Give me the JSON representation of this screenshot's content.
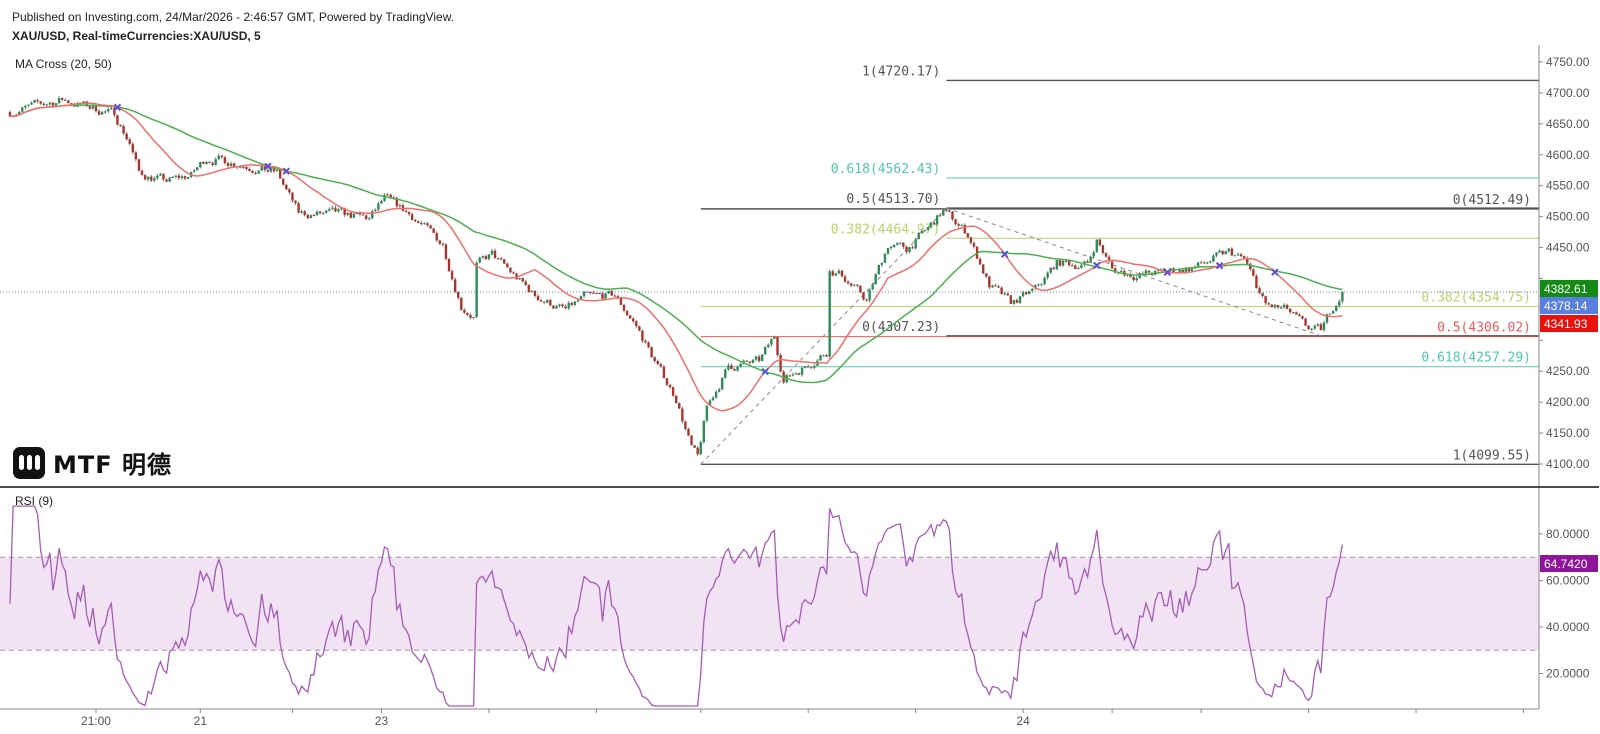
{
  "header": {
    "published": "Published on Investing.com, 24/Mar/2026 - 2:46:57 GMT, Powered by TradingView.",
    "symbol": "XAU/USD, Real-timeCurrencies:XAU/USD, 5",
    "ma_indicator": "MA Cross (20, 50)",
    "rsi_indicator": "RSI (9)"
  },
  "logo": {
    "text": "MTF 明德"
  },
  "colors": {
    "up": "#2e8b57",
    "down": "#a8362c",
    "ma20": "#ef6f6c",
    "ma50": "#4caf50",
    "rsi": "#a55cb5",
    "rsi_band": "#f1e3f3",
    "last": "#5b7fe0",
    "cross": "#5b4fd6",
    "fib_gray": "#555555",
    "fib_teal": "#4fc9b0",
    "fib_red": "#ef5a5a",
    "fib_yellow": "#b6d46a"
  },
  "chart_data": {
    "type": "candlestick",
    "title": "XAU/USD, 5",
    "x_domain_bars": [
      0,
      498
    ],
    "price_ylim": [
      4100,
      4750
    ],
    "price_ticks": [
      4100,
      4150,
      4200,
      4250,
      4300,
      4350,
      4400,
      4450,
      4500,
      4550,
      4600,
      4650,
      4700,
      4750
    ],
    "keypoints": [
      [
        0,
        4669
      ],
      [
        17,
        4689
      ],
      [
        34,
        4666
      ],
      [
        39,
        4620
      ],
      [
        42,
        4570
      ],
      [
        51,
        4557
      ],
      [
        59,
        4567
      ],
      [
        64,
        4595
      ],
      [
        74,
        4587
      ],
      [
        87,
        4570
      ],
      [
        94,
        4504
      ],
      [
        107,
        4504
      ],
      [
        117,
        4496
      ],
      [
        122,
        4529
      ],
      [
        131,
        4501
      ],
      [
        141,
        4455
      ],
      [
        147,
        4356
      ],
      [
        151,
        4339
      ],
      [
        152,
        4422
      ],
      [
        157,
        4438
      ],
      [
        164,
        4405
      ],
      [
        171,
        4372
      ],
      [
        181,
        4348
      ],
      [
        187,
        4369
      ],
      [
        197,
        4372
      ],
      [
        204,
        4323
      ],
      [
        211,
        4257
      ],
      [
        217,
        4207
      ],
      [
        222,
        4125
      ],
      [
        224,
        4108
      ],
      [
        227,
        4191
      ],
      [
        234,
        4257
      ],
      [
        244,
        4265
      ],
      [
        249,
        4306
      ],
      [
        252,
        4237
      ],
      [
        261,
        4265
      ],
      [
        266,
        4282
      ],
      [
        267,
        4414
      ],
      [
        271,
        4405
      ],
      [
        279,
        4364
      ],
      [
        286,
        4455
      ],
      [
        292,
        4447
      ],
      [
        299,
        4480
      ],
      [
        304,
        4509
      ],
      [
        312,
        4472
      ],
      [
        319,
        4389
      ],
      [
        326,
        4359
      ],
      [
        334,
        4381
      ],
      [
        341,
        4425
      ],
      [
        351,
        4422
      ],
      [
        354,
        4463
      ],
      [
        359,
        4414
      ],
      [
        367,
        4405
      ],
      [
        381,
        4414
      ],
      [
        386,
        4418
      ],
      [
        397,
        4442
      ],
      [
        402,
        4430
      ],
      [
        409,
        4356
      ],
      [
        416,
        4348
      ],
      [
        422,
        4320
      ],
      [
        427,
        4315
      ],
      [
        431,
        4356
      ],
      [
        434,
        4378
      ]
    ],
    "ma_periods": [
      20,
      50
    ],
    "last_labels": [
      {
        "name": "ma50",
        "value": "4382.61"
      },
      {
        "name": "last",
        "value": "4378.14"
      },
      {
        "name": "ma20",
        "value": "4341.93"
      }
    ],
    "last_price": 4378.14,
    "fib_retracements": [
      {
        "from_bar": 225,
        "label_side": "right",
        "levels": [
          {
            "ratio": "0",
            "price": 4512.49,
            "text": "0(4512.49)",
            "color": "fib_gray"
          },
          {
            "ratio": "0.382",
            "price": 4354.75,
            "text": "0.382(4354.75)",
            "color": "fib_yellow"
          },
          {
            "ratio": "0.5",
            "price": 4306.02,
            "text": "0.5(4306.02)",
            "color": "fib_red"
          },
          {
            "ratio": "0.618",
            "price": 4257.29,
            "text": "0.618(4257.29)",
            "color": "fib_teal"
          },
          {
            "ratio": "1",
            "price": 4099.55,
            "text": "1(4099.55)",
            "color": "fib_gray"
          }
        ],
        "trend": [
          [
            225,
            4099.55
          ],
          [
            305,
            4513.7
          ]
        ]
      },
      {
        "from_bar": 305,
        "label_side": "left",
        "levels": [
          {
            "ratio": "1",
            "price": 4720.17,
            "text": "1(4720.17)",
            "color": "fib_gray"
          },
          {
            "ratio": "0.618",
            "price": 4562.43,
            "text": "0.618(4562.43)",
            "color": "fib_teal"
          },
          {
            "ratio": "0.5",
            "price": 4513.7,
            "text": "0.5(4513.70)",
            "color": "fib_gray"
          },
          {
            "ratio": "0.382",
            "price": 4464.97,
            "text": "0.382(4464.97)",
            "color": "fib_yellow"
          },
          {
            "ratio": "0",
            "price": 4307.23,
            "text": "0(4307.23)",
            "color": "fib_gray"
          }
        ],
        "trend": [
          [
            305,
            4513.7
          ],
          [
            427,
            4307.23
          ]
        ]
      }
    ],
    "rsi": {
      "period": 9,
      "ylim": [
        5,
        95
      ],
      "upper": 70,
      "lower": 30,
      "ticks": [
        80,
        60,
        40,
        20
      ],
      "tick_labels": [
        "80.0000",
        "60.0000",
        "40.0000",
        "20.0000"
      ],
      "last_label": "64.7420"
    },
    "x_ticks": [
      {
        "bar": 28,
        "label": "21:00"
      },
      {
        "bar": 62,
        "label": "21"
      },
      {
        "bar": 92,
        "label": ""
      },
      {
        "bar": 121,
        "label": "23"
      },
      {
        "bar": 156,
        "label": ""
      },
      {
        "bar": 191,
        "label": ""
      },
      {
        "bar": 225,
        "label": ""
      },
      {
        "bar": 260,
        "label": ""
      },
      {
        "bar": 295,
        "label": ""
      },
      {
        "bar": 330,
        "label": "24"
      },
      {
        "bar": 359,
        "label": ""
      },
      {
        "bar": 388,
        "label": ""
      },
      {
        "bar": 423,
        "label": ""
      },
      {
        "bar": 458,
        "label": ""
      },
      {
        "bar": 493,
        "label": ""
      }
    ]
  }
}
